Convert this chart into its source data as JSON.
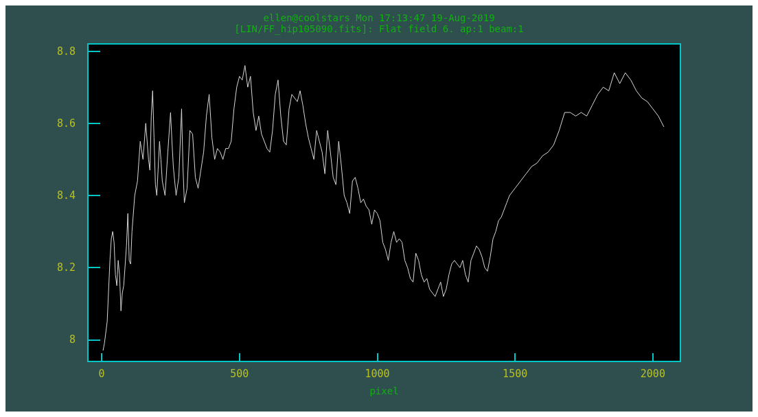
{
  "chart_data": {
    "type": "line",
    "title": "ellen@coolstars Mon 17:13:47 19-Aug-2019",
    "subtitle": "[LIN/FF_hip105090.fits]: Flat field 6. ap:1 beam:1",
    "xlabel": "pixel",
    "x": [
      5,
      10,
      20,
      30,
      35,
      40,
      45,
      50,
      55,
      60,
      65,
      70,
      75,
      80,
      90,
      95,
      100,
      105,
      110,
      120,
      130,
      140,
      150,
      160,
      170,
      175,
      180,
      185,
      190,
      195,
      200,
      210,
      215,
      220,
      230,
      240,
      250,
      255,
      260,
      270,
      280,
      290,
      295,
      300,
      310,
      320,
      330,
      340,
      350,
      360,
      370,
      380,
      390,
      400,
      410,
      420,
      430,
      440,
      450,
      460,
      470,
      480,
      490,
      500,
      510,
      520,
      530,
      540,
      550,
      560,
      570,
      580,
      590,
      600,
      610,
      620,
      630,
      640,
      650,
      660,
      670,
      680,
      690,
      700,
      710,
      720,
      730,
      740,
      750,
      760,
      770,
      780,
      790,
      800,
      810,
      820,
      830,
      840,
      850,
      860,
      870,
      880,
      890,
      900,
      910,
      920,
      930,
      940,
      950,
      960,
      970,
      980,
      990,
      1000,
      1010,
      1020,
      1030,
      1040,
      1050,
      1060,
      1070,
      1080,
      1090,
      1100,
      1110,
      1120,
      1130,
      1140,
      1150,
      1160,
      1170,
      1180,
      1190,
      1200,
      1210,
      1220,
      1230,
      1240,
      1250,
      1260,
      1270,
      1280,
      1290,
      1300,
      1310,
      1320,
      1330,
      1340,
      1350,
      1360,
      1370,
      1380,
      1390,
      1400,
      1410,
      1420,
      1430,
      1440,
      1450,
      1460,
      1470,
      1480,
      1500,
      1520,
      1540,
      1560,
      1580,
      1600,
      1620,
      1640,
      1660,
      1680,
      1700,
      1720,
      1740,
      1760,
      1780,
      1800,
      1820,
      1840,
      1860,
      1880,
      1900,
      1920,
      1940,
      1960,
      1980,
      2000,
      2020,
      2040
    ],
    "series": [
      {
        "color": "#d8d8d8",
        "values": [
          7.97,
          7.99,
          8.05,
          8.22,
          8.28,
          8.3,
          8.27,
          8.18,
          8.15,
          8.22,
          8.18,
          8.08,
          8.13,
          8.15,
          8.26,
          8.35,
          8.22,
          8.21,
          8.3,
          8.4,
          8.44,
          8.55,
          8.5,
          8.6,
          8.5,
          8.47,
          8.62,
          8.69,
          8.56,
          8.43,
          8.4,
          8.55,
          8.5,
          8.44,
          8.4,
          8.52,
          8.63,
          8.55,
          8.48,
          8.4,
          8.45,
          8.64,
          8.48,
          8.38,
          8.42,
          8.58,
          8.57,
          8.45,
          8.42,
          8.47,
          8.52,
          8.62,
          8.68,
          8.56,
          8.5,
          8.53,
          8.52,
          8.5,
          8.53,
          8.53,
          8.55,
          8.64,
          8.7,
          8.73,
          8.72,
          8.76,
          8.7,
          8.73,
          8.63,
          8.58,
          8.62,
          8.57,
          8.55,
          8.53,
          8.52,
          8.58,
          8.68,
          8.72,
          8.62,
          8.55,
          8.54,
          8.64,
          8.68,
          8.67,
          8.66,
          8.69,
          8.65,
          8.6,
          8.56,
          8.53,
          8.5,
          8.58,
          8.55,
          8.52,
          8.46,
          8.58,
          8.52,
          8.45,
          8.43,
          8.55,
          8.48,
          8.4,
          8.38,
          8.35,
          8.44,
          8.45,
          8.42,
          8.38,
          8.39,
          8.37,
          8.36,
          8.32,
          8.36,
          8.35,
          8.33,
          8.27,
          8.25,
          8.22,
          8.27,
          8.3,
          8.27,
          8.28,
          8.27,
          8.22,
          8.2,
          8.17,
          8.16,
          8.24,
          8.22,
          8.18,
          8.16,
          8.17,
          8.14,
          8.13,
          8.12,
          8.14,
          8.16,
          8.12,
          8.14,
          8.18,
          8.21,
          8.22,
          8.21,
          8.2,
          8.22,
          8.18,
          8.16,
          8.22,
          8.24,
          8.26,
          8.25,
          8.23,
          8.2,
          8.19,
          8.23,
          8.28,
          8.3,
          8.33,
          8.34,
          8.36,
          8.38,
          8.4,
          8.42,
          8.44,
          8.46,
          8.48,
          8.49,
          8.51,
          8.52,
          8.54,
          8.58,
          8.63,
          8.63,
          8.62,
          8.63,
          8.62,
          8.65,
          8.68,
          8.7,
          8.69,
          8.74,
          8.71,
          8.74,
          8.72,
          8.69,
          8.67,
          8.66,
          8.64,
          8.62,
          8.59
        ]
      }
    ],
    "xlim": [
      -50,
      2100
    ],
    "ylim": [
      7.94,
      8.82
    ],
    "xticks": [
      0,
      500,
      1000,
      1500,
      2000
    ],
    "yticks": [
      8,
      8.2,
      8.4,
      8.6,
      8.8
    ],
    "grid": false,
    "marker": "none",
    "line_style": "solid"
  }
}
